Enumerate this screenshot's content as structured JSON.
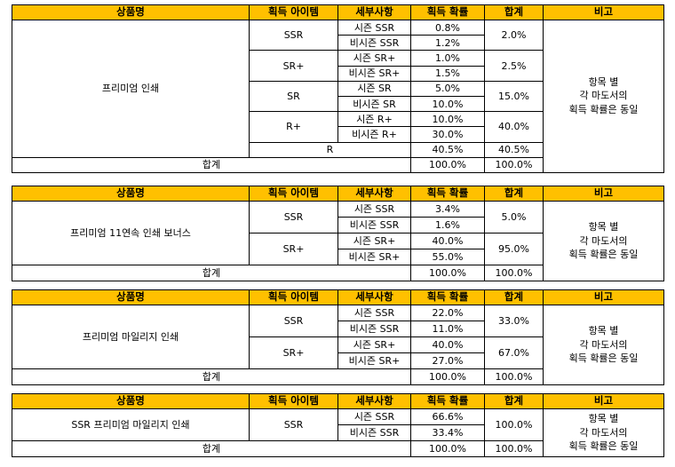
{
  "headers": {
    "product": "상품명",
    "item": "획득 아이템",
    "detail": "세부사항",
    "rate": "획득 확률",
    "sum": "합계",
    "note": "비고"
  },
  "tables": [
    {
      "product": "프리미엄 인쇄",
      "groups": [
        {
          "item": "SSR",
          "sum": "2.0%",
          "rows": [
            {
              "detail": "시즌 SSR",
              "rate": "0.8%"
            },
            {
              "detail": "비시즌 SSR",
              "rate": "1.2%"
            }
          ]
        },
        {
          "item": "SR+",
          "sum": "2.5%",
          "rows": [
            {
              "detail": "시즌 SR+",
              "rate": "1.0%"
            },
            {
              "detail": "비시즌 SR+",
              "rate": "1.5%"
            }
          ]
        },
        {
          "item": "SR",
          "sum": "15.0%",
          "rows": [
            {
              "detail": "시즌 SR",
              "rate": "5.0%"
            },
            {
              "detail": "비시즌 SR",
              "rate": "10.0%"
            }
          ]
        },
        {
          "item": "R+",
          "sum": "40.0%",
          "rows": [
            {
              "detail": "시즌 R+",
              "rate": "10.0%"
            },
            {
              "detail": "비시즌 R+",
              "rate": "30.0%"
            }
          ]
        }
      ],
      "single": {
        "item": "R",
        "rate": "40.5%",
        "sum": "40.5%"
      },
      "total": {
        "label": "합계",
        "rate": "100.0%",
        "sum": "100.0%"
      },
      "note": [
        "항목 별",
        "각 마도서의",
        "획득 확률은 동일"
      ]
    },
    {
      "product": "프리미엄 11연속 인쇄 보너스",
      "groups": [
        {
          "item": "SSR",
          "sum": "5.0%",
          "rows": [
            {
              "detail": "시즌 SSR",
              "rate": "3.4%"
            },
            {
              "detail": "비시즌 SSR",
              "rate": "1.6%"
            }
          ]
        },
        {
          "item": "SR+",
          "sum": "95.0%",
          "rows": [
            {
              "detail": "시즌 SR+",
              "rate": "40.0%"
            },
            {
              "detail": "비시즌 SR+",
              "rate": "55.0%"
            }
          ]
        }
      ],
      "total": {
        "label": "합계",
        "rate": "100.0%",
        "sum": "100.0%"
      },
      "note": [
        "항목 별",
        "각 마도서의",
        "획득 확률은 동일"
      ]
    },
    {
      "product": "프리미엄 마일리지 인쇄",
      "groups": [
        {
          "item": "SSR",
          "sum": "33.0%",
          "rows": [
            {
              "detail": "시즌 SSR",
              "rate": "22.0%"
            },
            {
              "detail": "비시즌 SSR",
              "rate": "11.0%"
            }
          ]
        },
        {
          "item": "SR+",
          "sum": "67.0%",
          "rows": [
            {
              "detail": "시즌 SR+",
              "rate": "40.0%"
            },
            {
              "detail": "비시즌 SR+",
              "rate": "27.0%"
            }
          ]
        }
      ],
      "total": {
        "label": "합계",
        "rate": "100.0%",
        "sum": "100.0%"
      },
      "note": [
        "항목 별",
        "각 마도서의",
        "획득 확률은 동일"
      ]
    },
    {
      "product": "SSR 프리미엄 마일리지 인쇄",
      "groups": [
        {
          "item": "SSR",
          "sum": "100.0%",
          "rows": [
            {
              "detail": "시즌 SSR",
              "rate": "66.6%"
            },
            {
              "detail": "비시즌 SSR",
              "rate": "33.4%"
            }
          ]
        }
      ],
      "total": {
        "label": "합계",
        "rate": "100.0%",
        "sum": "100.0%"
      },
      "note": [
        "항목 별",
        "각 마도서의",
        "획득 확률은 동일"
      ]
    }
  ]
}
